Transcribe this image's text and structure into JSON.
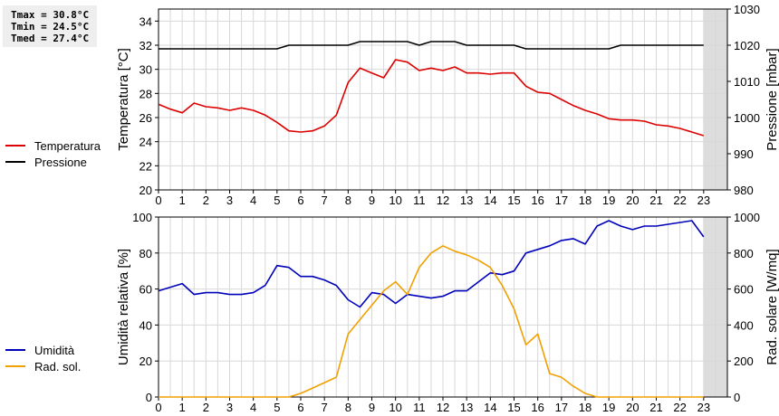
{
  "stats": {
    "tmax": "Tmax = 30.8°C",
    "tmin": "Tmin = 24.5°C",
    "tmed": "Tmed = 27.4°C"
  },
  "chart_data": [
    {
      "type": "line",
      "x_ticks": [
        "0",
        "1",
        "2",
        "3",
        "4",
        "5",
        "6",
        "7",
        "8",
        "9",
        "10",
        "11",
        "12",
        "13",
        "14",
        "15",
        "16",
        "17",
        "18",
        "19",
        "20",
        "21",
        "22",
        "23"
      ],
      "xlim": [
        0,
        24
      ],
      "ylabel": "Temperatura [°C]",
      "ylim": [
        20,
        35
      ],
      "y_ticks": [
        20,
        22,
        24,
        26,
        28,
        30,
        32,
        34
      ],
      "ylabel_right": "Pressione [mbar]",
      "ylim_right": [
        980,
        1030
      ],
      "y_ticks_right": [
        980,
        990,
        1000,
        1010,
        1020,
        1030
      ],
      "grid": true,
      "legend": "left",
      "shaded_range": [
        23,
        24
      ],
      "series": [
        {
          "name": "Temperatura",
          "color": "#dd0000",
          "axis": "left",
          "x": [
            0,
            0.5,
            1,
            1.5,
            2,
            2.5,
            3,
            3.5,
            4,
            4.5,
            5,
            5.5,
            6,
            6.5,
            7,
            7.5,
            8,
            8.5,
            9,
            9.5,
            10,
            10.5,
            11,
            11.5,
            12,
            12.5,
            13,
            13.5,
            14,
            14.5,
            15,
            15.5,
            16,
            16.5,
            17,
            17.5,
            18,
            18.5,
            19,
            19.5,
            20,
            20.5,
            21,
            21.5,
            22,
            22.5,
            23
          ],
          "values": [
            27.1,
            26.7,
            26.4,
            27.2,
            26.9,
            26.8,
            26.6,
            26.8,
            26.6,
            26.2,
            25.6,
            24.9,
            24.8,
            24.9,
            25.3,
            26.2,
            28.9,
            30.1,
            29.7,
            29.3,
            30.8,
            30.6,
            29.9,
            30.1,
            29.9,
            30.2,
            29.7,
            29.7,
            29.6,
            29.7,
            29.7,
            28.6,
            28.1,
            28.0,
            27.5,
            27.0,
            26.6,
            26.3,
            25.9,
            25.8,
            25.8,
            25.7,
            25.4,
            25.3,
            25.1,
            24.8,
            24.5
          ]
        },
        {
          "name": "Pressione",
          "color": "#000000",
          "axis": "right",
          "x": [
            0,
            0.5,
            1,
            1.5,
            2,
            2.5,
            3,
            3.5,
            4,
            4.5,
            5,
            5.5,
            6,
            6.5,
            7,
            7.5,
            8,
            8.5,
            9,
            9.5,
            10,
            10.5,
            11,
            11.5,
            12,
            12.5,
            13,
            13.5,
            14,
            14.5,
            15,
            15.5,
            16,
            16.5,
            17,
            17.5,
            18,
            18.5,
            19,
            19.5,
            20,
            20.5,
            21,
            21.5,
            22,
            22.5,
            23
          ],
          "values": [
            1019,
            1019,
            1019,
            1019,
            1019,
            1019,
            1019,
            1019,
            1019,
            1019,
            1019,
            1020,
            1020,
            1020,
            1020,
            1020,
            1020,
            1021,
            1021,
            1021,
            1021,
            1021,
            1020,
            1021,
            1021,
            1021,
            1020,
            1020,
            1020,
            1020,
            1020,
            1019,
            1019,
            1019,
            1019,
            1019,
            1019,
            1019,
            1019,
            1020,
            1020,
            1020,
            1020,
            1020,
            1020,
            1020,
            1020
          ]
        }
      ]
    },
    {
      "type": "line",
      "x_ticks": [
        "0",
        "1",
        "2",
        "3",
        "4",
        "5",
        "6",
        "7",
        "8",
        "9",
        "10",
        "11",
        "12",
        "13",
        "14",
        "15",
        "16",
        "17",
        "18",
        "19",
        "20",
        "21",
        "22",
        "23"
      ],
      "xlim": [
        0,
        24
      ],
      "ylabel": "Umidità relativa [%]",
      "ylim": [
        0,
        100
      ],
      "y_ticks": [
        0,
        20,
        40,
        60,
        80,
        100
      ],
      "ylabel_right": "Rad. solare [W/mq]",
      "ylim_right": [
        0,
        1000
      ],
      "y_ticks_right": [
        0,
        200,
        400,
        600,
        800,
        1000
      ],
      "grid": true,
      "legend": "left",
      "shaded_range": [
        23,
        24
      ],
      "series": [
        {
          "name": "Umidità",
          "color": "#0000bb",
          "axis": "left",
          "x": [
            0,
            0.5,
            1,
            1.5,
            2,
            2.5,
            3,
            3.5,
            4,
            4.5,
            5,
            5.5,
            6,
            6.5,
            7,
            7.5,
            8,
            8.5,
            9,
            9.5,
            10,
            10.5,
            11,
            11.5,
            12,
            12.5,
            13,
            13.5,
            14,
            14.5,
            15,
            15.5,
            16,
            16.5,
            17,
            17.5,
            18,
            18.5,
            19,
            19.5,
            20,
            20.5,
            21,
            21.5,
            22,
            22.5,
            23
          ],
          "values": [
            59,
            61,
            63,
            57,
            58,
            58,
            57,
            57,
            58,
            62,
            73,
            72,
            67,
            67,
            65,
            62,
            54,
            50,
            58,
            57,
            52,
            57,
            56,
            55,
            56,
            59,
            59,
            64,
            69,
            68,
            70,
            80,
            82,
            84,
            87,
            88,
            85,
            95,
            98,
            95,
            93,
            95,
            95,
            96,
            97,
            98,
            89
          ]
        },
        {
          "name": "Rad. sol.",
          "color": "#f0a000",
          "axis": "right",
          "x": [
            0,
            0.5,
            1,
            1.5,
            2,
            2.5,
            3,
            3.5,
            4,
            4.5,
            5,
            5.5,
            6,
            6.5,
            7,
            7.5,
            8,
            8.5,
            9,
            9.5,
            10,
            10.5,
            11,
            11.5,
            12,
            12.5,
            13,
            13.5,
            14,
            14.5,
            15,
            15.5,
            16,
            16.5,
            17,
            17.5,
            18,
            18.5,
            19,
            19.5,
            20,
            20.5,
            21,
            21.5,
            22,
            22.5,
            23
          ],
          "values": [
            0,
            0,
            0,
            0,
            0,
            0,
            0,
            0,
            0,
            0,
            0,
            0,
            20,
            50,
            80,
            110,
            350,
            430,
            510,
            590,
            640,
            570,
            720,
            800,
            840,
            810,
            790,
            760,
            720,
            620,
            490,
            290,
            350,
            130,
            110,
            60,
            20,
            0,
            0,
            0,
            0,
            0,
            0,
            0,
            0,
            0,
            0
          ]
        }
      ]
    }
  ]
}
